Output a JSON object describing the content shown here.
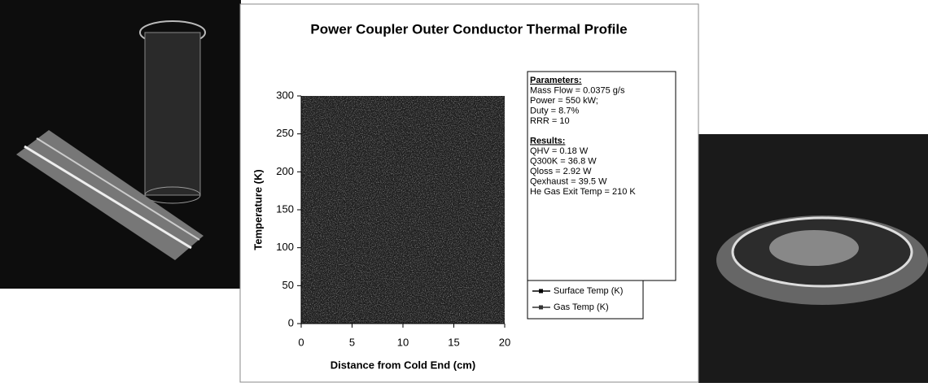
{
  "chart_data": {
    "type": "line",
    "title": "Power Coupler Outer Conductor Thermal Profile",
    "x_label": "Distance from Cold End (cm)",
    "y_label": "Temperature (K)",
    "xlim": [
      0,
      20
    ],
    "xticks": [
      0,
      5,
      10,
      15,
      20
    ],
    "ylim": [
      0,
      300
    ],
    "yticks": [
      0,
      50,
      100,
      150,
      200,
      250,
      300
    ],
    "series": [
      {
        "name": "Surface Temp (K)",
        "color": "#000000"
      },
      {
        "name": "Gas Temp (K)",
        "color": "#333333"
      }
    ],
    "parameters": {
      "heading": "Parameters:",
      "lines": [
        "Mass Flow = 0.0375 g/s",
        "Power = 550 kW;",
        "Duty = 8.7%",
        "RRR = 10"
      ]
    },
    "results": {
      "heading": "Results:",
      "lines": [
        "QHV = 0.18 W",
        "Q300K = 36.8 W",
        "Qloss = 2.92 W",
        "Qexhaust = 39.5 W",
        "He Gas Exit Temp = 210 K"
      ]
    }
  }
}
